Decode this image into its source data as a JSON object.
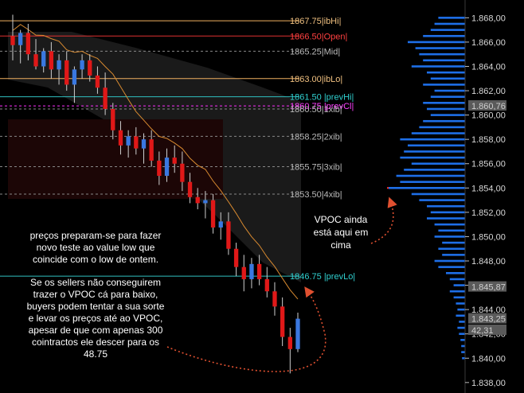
{
  "chart_data": {
    "type": "candlestick",
    "y_axis": {
      "range": [
        1837.4,
        1869.2
      ],
      "ticks": [
        "1.838,00",
        "1.840,00",
        "1.842,00",
        "1.844,00",
        "1.846,00",
        "1.848,00",
        "1.850,00",
        "1.852,00",
        "1.854,00",
        "1.856,00",
        "1.858,00",
        "1.860,00",
        "1.862,00",
        "1.864,00",
        "1.866,00",
        "1.868,00"
      ],
      "tick_values": [
        1838,
        1840,
        1842,
        1844,
        1846,
        1848,
        1850,
        1852,
        1854,
        1856,
        1858,
        1860,
        1862,
        1864,
        1866,
        1868
      ]
    },
    "price_tags": [
      {
        "label": "1.860,76",
        "value": 1860.76,
        "bg": "#5a5a5a",
        "fg": "#cfcfcf"
      },
      {
        "label": "1.845,87",
        "value": 1845.87,
        "bg": "#5a5a5a",
        "fg": "#cfcfcf"
      },
      {
        "label": "1.843,25",
        "value": 1843.25,
        "bg": "#5a5a5a",
        "fg": "#cfcfcf"
      },
      {
        "label": "42,31",
        "value": 1842.31,
        "bg": "#5a5a5a",
        "fg": "#cfcfcf"
      }
    ],
    "levels": [
      {
        "value": 1867.75,
        "label": "1867.75|ibHi|",
        "color": "#f0b060",
        "fg": "#f0c080",
        "dash": false
      },
      {
        "value": 1866.5,
        "label": "1866.50|Open|",
        "color": "#e03030",
        "fg": "#ff4040",
        "dash": false
      },
      {
        "value": 1865.25,
        "label": "1865.25|Mid|",
        "color": "#888888",
        "fg": "#bbbbbb",
        "dash": true
      },
      {
        "value": 1863.0,
        "label": "1863.00|ibLo|",
        "color": "#f0b060",
        "fg": "#f0c080",
        "dash": false
      },
      {
        "value": 1861.5,
        "label": "1861.50 |prevHi|",
        "color": "#30c0c0",
        "fg": "#30d0d0",
        "dash": false
      },
      {
        "value": 1860.75,
        "label": "1860.75 |prevCl|",
        "color": "#ff30ff",
        "fg": "#ff40ff",
        "dash": true
      },
      {
        "value": 1860.5,
        "label": "1860.50|1xib|",
        "color": "#888888",
        "fg": "#bbbbbb",
        "dash": true
      },
      {
        "value": 1858.25,
        "label": "1858.25|2xib|",
        "color": "#888888",
        "fg": "#bbbbbb",
        "dash": true
      },
      {
        "value": 1855.75,
        "label": "1855.75|3xib|",
        "color": "#888888",
        "fg": "#bbbbbb",
        "dash": true
      },
      {
        "value": 1853.5,
        "label": "1853.50|4xib|",
        "color": "#888888",
        "fg": "#bbbbbb",
        "dash": true
      },
      {
        "value": 1846.75,
        "label": "1846.75 |prevLo|",
        "color": "#30c0c0",
        "fg": "#30d0d0",
        "dash": false
      }
    ],
    "vpoc": {
      "value": 1854.0,
      "color": "#ff3030"
    },
    "candles": [
      {
        "o": 1866.5,
        "h": 1868.25,
        "l": 1864.5,
        "c": 1865.75
      },
      {
        "o": 1865.75,
        "h": 1867.0,
        "l": 1864.25,
        "c": 1866.75
      },
      {
        "o": 1866.75,
        "h": 1867.5,
        "l": 1864.5,
        "c": 1865.0
      },
      {
        "o": 1865.0,
        "h": 1866.25,
        "l": 1863.75,
        "c": 1864.0
      },
      {
        "o": 1864.0,
        "h": 1865.5,
        "l": 1863.5,
        "c": 1865.25
      },
      {
        "o": 1865.25,
        "h": 1866.0,
        "l": 1863.0,
        "c": 1863.75
      },
      {
        "o": 1863.75,
        "h": 1865.0,
        "l": 1862.5,
        "c": 1864.5
      },
      {
        "o": 1864.5,
        "h": 1865.25,
        "l": 1862.0,
        "c": 1862.5
      },
      {
        "o": 1862.5,
        "h": 1864.0,
        "l": 1861.0,
        "c": 1863.75
      },
      {
        "o": 1863.75,
        "h": 1865.0,
        "l": 1863.0,
        "c": 1864.5
      },
      {
        "o": 1864.5,
        "h": 1865.0,
        "l": 1862.75,
        "c": 1863.25
      },
      {
        "o": 1863.25,
        "h": 1864.0,
        "l": 1861.75,
        "c": 1862.25
      },
      {
        "o": 1862.25,
        "h": 1863.5,
        "l": 1860.0,
        "c": 1860.5
      },
      {
        "o": 1860.5,
        "h": 1861.0,
        "l": 1858.0,
        "c": 1858.75
      },
      {
        "o": 1858.75,
        "h": 1859.5,
        "l": 1856.75,
        "c": 1857.5
      },
      {
        "o": 1857.5,
        "h": 1858.75,
        "l": 1856.5,
        "c": 1858.25
      },
      {
        "o": 1858.25,
        "h": 1859.0,
        "l": 1856.75,
        "c": 1857.25
      },
      {
        "o": 1857.25,
        "h": 1858.5,
        "l": 1856.0,
        "c": 1858.0
      },
      {
        "o": 1858.0,
        "h": 1858.75,
        "l": 1855.75,
        "c": 1856.25
      },
      {
        "o": 1856.25,
        "h": 1857.0,
        "l": 1854.25,
        "c": 1855.0
      },
      {
        "o": 1855.0,
        "h": 1857.25,
        "l": 1854.5,
        "c": 1856.5
      },
      {
        "o": 1856.5,
        "h": 1857.5,
        "l": 1855.25,
        "c": 1856.0
      },
      {
        "o": 1856.0,
        "h": 1857.0,
        "l": 1853.75,
        "c": 1854.5
      },
      {
        "o": 1854.5,
        "h": 1855.25,
        "l": 1852.75,
        "c": 1853.25
      },
      {
        "o": 1853.25,
        "h": 1854.0,
        "l": 1852.25,
        "c": 1852.75
      },
      {
        "o": 1852.75,
        "h": 1853.75,
        "l": 1851.5,
        "c": 1853.0
      },
      {
        "o": 1853.0,
        "h": 1853.5,
        "l": 1850.25,
        "c": 1850.75
      },
      {
        "o": 1850.75,
        "h": 1852.0,
        "l": 1849.75,
        "c": 1851.25
      },
      {
        "o": 1851.25,
        "h": 1852.0,
        "l": 1848.5,
        "c": 1849.0
      },
      {
        "o": 1849.0,
        "h": 1849.5,
        "l": 1846.75,
        "c": 1847.5
      },
      {
        "o": 1847.5,
        "h": 1848.5,
        "l": 1845.5,
        "c": 1846.5
      },
      {
        "o": 1846.5,
        "h": 1848.25,
        "l": 1845.75,
        "c": 1847.75
      },
      {
        "o": 1847.75,
        "h": 1848.5,
        "l": 1846.0,
        "c": 1846.5
      },
      {
        "o": 1846.5,
        "h": 1847.5,
        "l": 1845.0,
        "c": 1845.5
      },
      {
        "o": 1845.5,
        "h": 1846.25,
        "l": 1843.5,
        "c": 1844.25
      },
      {
        "o": 1844.25,
        "h": 1845.0,
        "l": 1841.0,
        "c": 1841.75
      },
      {
        "o": 1841.75,
        "h": 1842.5,
        "l": 1838.75,
        "c": 1840.75
      },
      {
        "o": 1840.75,
        "h": 1843.75,
        "l": 1840.5,
        "c": 1843.25
      }
    ],
    "volume_profile": [
      {
        "price": 1868.0,
        "v": 0.35
      },
      {
        "price": 1867.5,
        "v": 0.4
      },
      {
        "price": 1867.0,
        "v": 0.45
      },
      {
        "price": 1866.5,
        "v": 0.55
      },
      {
        "price": 1866.0,
        "v": 0.75
      },
      {
        "price": 1865.5,
        "v": 0.65
      },
      {
        "price": 1865.0,
        "v": 0.6
      },
      {
        "price": 1864.5,
        "v": 0.55
      },
      {
        "price": 1864.0,
        "v": 0.7
      },
      {
        "price": 1863.5,
        "v": 0.5
      },
      {
        "price": 1863.0,
        "v": 0.45
      },
      {
        "price": 1862.5,
        "v": 0.55
      },
      {
        "price": 1862.0,
        "v": 0.4
      },
      {
        "price": 1861.5,
        "v": 0.45
      },
      {
        "price": 1861.0,
        "v": 0.55
      },
      {
        "price": 1860.5,
        "v": 0.5
      },
      {
        "price": 1860.0,
        "v": 0.45
      },
      {
        "price": 1859.5,
        "v": 0.55
      },
      {
        "price": 1859.0,
        "v": 0.6
      },
      {
        "price": 1858.5,
        "v": 0.7
      },
      {
        "price": 1858.0,
        "v": 0.85
      },
      {
        "price": 1857.5,
        "v": 0.75
      },
      {
        "price": 1857.0,
        "v": 0.8
      },
      {
        "price": 1856.5,
        "v": 0.85
      },
      {
        "price": 1856.0,
        "v": 0.7
      },
      {
        "price": 1855.5,
        "v": 0.8
      },
      {
        "price": 1855.0,
        "v": 0.9
      },
      {
        "price": 1854.5,
        "v": 0.85
      },
      {
        "price": 1854.0,
        "v": 1.0
      },
      {
        "price": 1853.5,
        "v": 0.7
      },
      {
        "price": 1853.0,
        "v": 0.6
      },
      {
        "price": 1852.5,
        "v": 0.5
      },
      {
        "price": 1852.0,
        "v": 0.45
      },
      {
        "price": 1851.5,
        "v": 0.5
      },
      {
        "price": 1851.0,
        "v": 0.4
      },
      {
        "price": 1850.5,
        "v": 0.35
      },
      {
        "price": 1850.0,
        "v": 0.4
      },
      {
        "price": 1849.5,
        "v": 0.3
      },
      {
        "price": 1849.0,
        "v": 0.35
      },
      {
        "price": 1848.5,
        "v": 0.3
      },
      {
        "price": 1848.0,
        "v": 0.4
      },
      {
        "price": 1847.5,
        "v": 0.35
      },
      {
        "price": 1847.0,
        "v": 0.25
      },
      {
        "price": 1846.5,
        "v": 0.2
      },
      {
        "price": 1846.0,
        "v": 0.15
      },
      {
        "price": 1845.5,
        "v": 0.2
      },
      {
        "price": 1845.0,
        "v": 0.15
      },
      {
        "price": 1844.5,
        "v": 0.12
      },
      {
        "price": 1844.0,
        "v": 0.1
      },
      {
        "price": 1843.5,
        "v": 0.12
      },
      {
        "price": 1843.0,
        "v": 0.08
      },
      {
        "price": 1842.5,
        "v": 0.1
      },
      {
        "price": 1842.0,
        "v": 0.08
      },
      {
        "price": 1841.5,
        "v": 0.06
      },
      {
        "price": 1841.0,
        "v": 0.05
      },
      {
        "price": 1840.5,
        "v": 0.05
      },
      {
        "price": 1840.0,
        "v": 0.04
      }
    ]
  },
  "annotations": {
    "vpoc_note": [
      "VPOC ainda",
      "está aqui em",
      "cima"
    ],
    "note1": [
      "preços preparam-se para fazer",
      "novo teste ao value low que",
      "coincide com o low de ontem."
    ],
    "note2": [
      "Se os sellers não conseguirem",
      "trazer o VPOC cá para baixo,",
      "buyers podem tentar a sua sorte",
      "e levar os preços até ao VPOC,",
      "apesar de que com apenas 300",
      "cointractos ele descer para os",
      "48.75"
    ]
  },
  "colors": {
    "up": "#3a78e0",
    "down": "#e01818",
    "profile": "#1e6fe8",
    "ma": "#d88a30",
    "arrow": "#e05030"
  }
}
